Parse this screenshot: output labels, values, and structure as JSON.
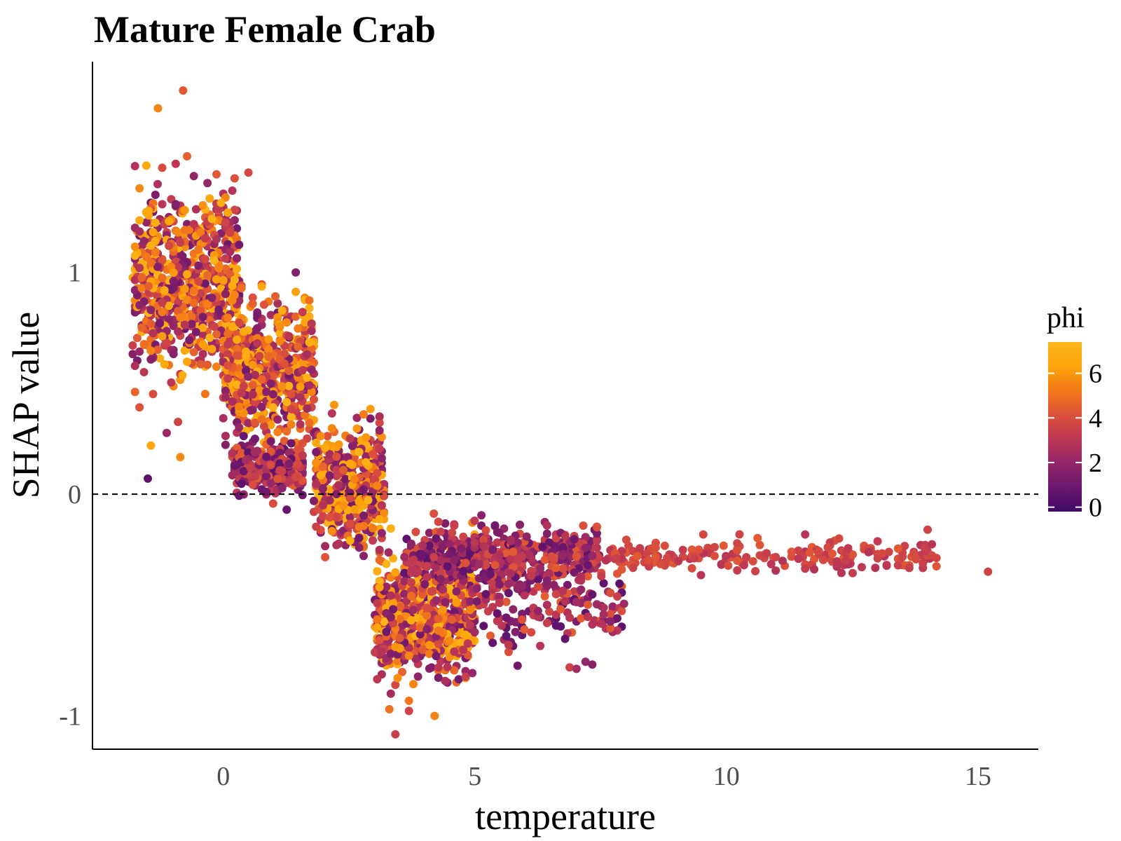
{
  "chart_data": {
    "type": "scatter",
    "title": "Mature Female Crab",
    "xlabel": "temperature",
    "ylabel": "SHAP value",
    "xlim": [
      -2.6,
      16.2
    ],
    "ylim": [
      -1.15,
      1.95
    ],
    "xticks": [
      0,
      5,
      10,
      15
    ],
    "yticks": [
      -1,
      0,
      1
    ],
    "x_tick_labels": [
      "0",
      "5",
      "10",
      "15"
    ],
    "y_tick_labels": [
      "-1",
      "0",
      "1"
    ],
    "reference_line": {
      "y": 0,
      "style": "dashed"
    },
    "grid": false,
    "color_by": "phi",
    "colorscale": {
      "name": "inferno",
      "range": [
        -0.2,
        7.4
      ],
      "stops": [
        "#420a68",
        "#6a176e",
        "#932667",
        "#bc3754",
        "#dd513a",
        "#f37819",
        "#fca50a",
        "#fbb61a"
      ]
    },
    "legend": {
      "title": "phi",
      "position": "right",
      "ticks": [
        0,
        2,
        4,
        6
      ],
      "tick_labels": [
        "0",
        "2",
        "4",
        "6"
      ]
    },
    "clusters": [
      {
        "x_min": -1.8,
        "x_max": 0.3,
        "y_center": 0.95,
        "y_spread": 0.38,
        "n": 700
      },
      {
        "x_min": 0.0,
        "x_max": 1.8,
        "y_center": 0.55,
        "y_spread": 0.28,
        "n": 600
      },
      {
        "x_min": 0.2,
        "x_max": 1.6,
        "y_center": 0.12,
        "y_spread": 0.1,
        "n": 250
      },
      {
        "x_min": 1.8,
        "x_max": 3.2,
        "y_center": 0.05,
        "y_spread": 0.22,
        "n": 450
      },
      {
        "x_min": 3.0,
        "x_max": 5.0,
        "y_center": -0.55,
        "y_spread": 0.25,
        "n": 700
      },
      {
        "x_min": 3.6,
        "x_max": 7.5,
        "y_center": -0.28,
        "y_spread": 0.12,
        "n": 500
      },
      {
        "x_min": 5.0,
        "x_max": 8.0,
        "y_center": -0.5,
        "y_spread": 0.18,
        "n": 180
      },
      {
        "x_min": 7.5,
        "x_max": 14.2,
        "y_center": -0.28,
        "y_spread": 0.07,
        "n": 200
      }
    ],
    "points": [
      {
        "x": -0.8,
        "y": 1.82,
        "phi": 4.3
      },
      {
        "x": -1.3,
        "y": 1.74,
        "phi": 5.5
      },
      {
        "x": 0.5,
        "y": 1.45,
        "phi": 3.8
      },
      {
        "x": -1.5,
        "y": 0.07,
        "phi": 0.6
      },
      {
        "x": 15.2,
        "y": -0.35,
        "phi": 3.6
      },
      {
        "x": 4.2,
        "y": -1.0,
        "phi": 5.5
      },
      {
        "x": 3.3,
        "y": -0.97,
        "phi": 5.0
      },
      {
        "x": 14.0,
        "y": -0.16,
        "phi": 3.6
      }
    ]
  }
}
